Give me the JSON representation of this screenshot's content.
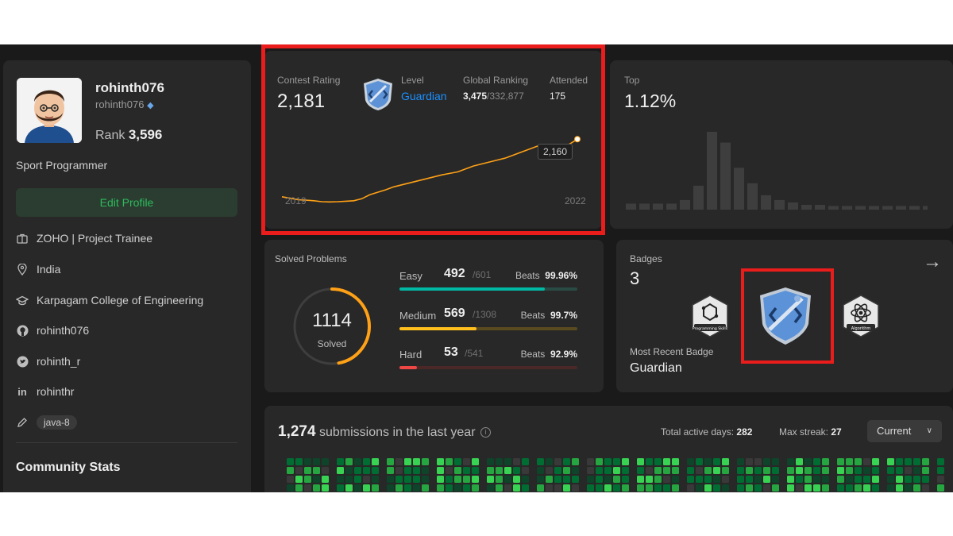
{
  "profile": {
    "username": "rohinth076",
    "handle": "rohinth076",
    "rank_label": "Rank",
    "rank_value": "3,596",
    "role": "Sport Programmer",
    "edit_label": "Edit Profile",
    "info": [
      {
        "icon": "briefcase-icon",
        "text": "ZOHO | Project Trainee"
      },
      {
        "icon": "location-icon",
        "text": "India"
      },
      {
        "icon": "graduation-cap-icon",
        "text": "Karpagam College of Engineering"
      },
      {
        "icon": "github-icon",
        "text": "rohinth076"
      },
      {
        "icon": "twitter-icon",
        "text": "rohinth_r"
      },
      {
        "icon": "linkedin-icon",
        "text": "rohinthr"
      }
    ],
    "skill_tag": "java-8",
    "community_title": "Community Stats"
  },
  "contest": {
    "rating_label": "Contest Rating",
    "rating_value": "2,181",
    "level_label": "Level",
    "level_value": "Guardian",
    "global_label": "Global Ranking",
    "global_rank": "3,475",
    "global_total": "/332,877",
    "attended_label": "Attended",
    "attended_value": "175",
    "tooltip": "2,160",
    "year_start": "2019",
    "year_end": "2022",
    "history": [
      1580,
      1565,
      1550,
      1545,
      1540,
      1530,
      1528,
      1530,
      1535,
      1540,
      1560,
      1600,
      1625,
      1650,
      1680,
      1700,
      1720,
      1740,
      1760,
      1780,
      1800,
      1815,
      1830,
      1860,
      1890,
      1910,
      1930,
      1950,
      1970,
      2000,
      2030,
      2060,
      2090,
      2100,
      2080,
      2075,
      2110,
      2160
    ]
  },
  "top": {
    "label": "Top",
    "value": "1.12%",
    "histogram": [
      5,
      5,
      5,
      5,
      8,
      20,
      65,
      56,
      35,
      22,
      12,
      8,
      6,
      4,
      4,
      3,
      3,
      3,
      3,
      3,
      3,
      3,
      3,
      3,
      3,
      3,
      3,
      3,
      3,
      3,
      4,
      3,
      3
    ],
    "highlight_index": 30,
    "bar_color": "#3e3e3e",
    "highlight_color": "#ffa116"
  },
  "solved": {
    "label": "Solved Problems",
    "total": "1114",
    "sub": "Solved",
    "ring_fraction": 0.47,
    "ring_color": "#ffa116",
    "items": [
      {
        "name": "Easy",
        "count": "492",
        "total": "/601",
        "beats_label": "Beats",
        "beats": "99.96%",
        "fraction": 0.818,
        "color": "#00b8a3",
        "track": "#2a4a44"
      },
      {
        "name": "Medium",
        "count": "569",
        "total": "/1308",
        "beats_label": "Beats",
        "beats": "99.7%",
        "fraction": 0.435,
        "color": "#ffc01e",
        "track": "#5a4a20"
      },
      {
        "name": "Hard",
        "count": "53",
        "total": "/541",
        "beats_label": "Beats",
        "beats": "92.9%",
        "fraction": 0.098,
        "color": "#ef4743",
        "track": "#4a2828"
      }
    ]
  },
  "badges": {
    "label": "Badges",
    "count": "3",
    "left_badge_text": "Programming Skills",
    "right_badge_text": "Algorithm",
    "recent_label": "Most Recent Badge",
    "recent_value": "Guardian"
  },
  "submissions": {
    "count": "1,274",
    "title_suffix": " submissions in the last year",
    "active_label": "Total active days:",
    "active_value": "282",
    "streak_label": "Max streak:",
    "streak_value": "27",
    "period": "Current"
  }
}
